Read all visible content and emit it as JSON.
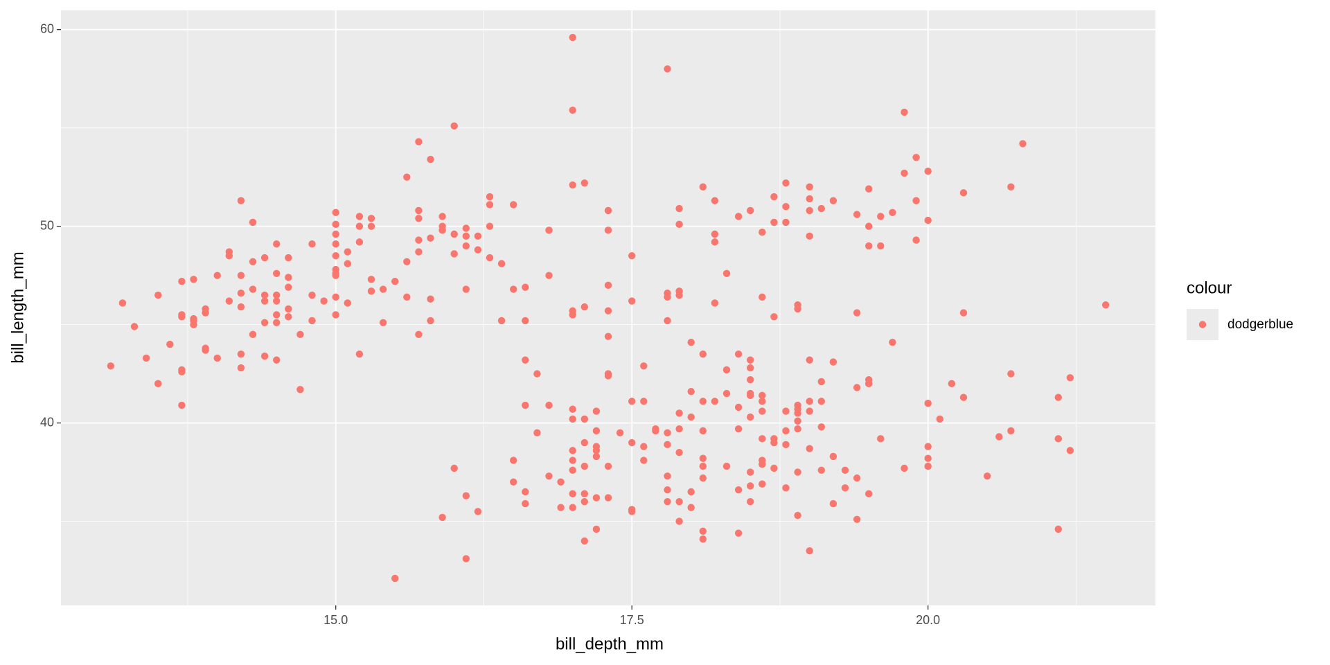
{
  "chart_data": {
    "type": "scatter",
    "x_label": "bill_depth_mm",
    "y_label": "bill_length_mm",
    "legend_title": "colour",
    "legend_position": "right",
    "series": [
      {
        "name": "dodgerblue",
        "color": "#F8766D",
        "x": [
          13.1,
          13.2,
          13.3,
          13.4,
          13.5,
          13.5,
          13.6,
          13.7,
          13.7,
          13.7,
          13.7,
          13.7,
          13.7,
          13.8,
          13.8,
          13.8,
          13.8,
          13.9,
          13.9,
          13.9,
          13.9,
          14.0,
          14.0,
          14.1,
          14.1,
          14.1,
          14.2,
          14.2,
          14.2,
          14.2,
          14.2,
          14.2,
          14.3,
          14.3,
          14.3,
          14.3,
          14.4,
          14.4,
          14.4,
          14.4,
          14.4,
          14.5,
          14.5,
          14.5,
          14.5,
          14.5,
          14.5,
          14.5,
          14.6,
          14.6,
          14.6,
          14.6,
          14.6,
          14.7,
          14.7,
          14.8,
          14.8,
          14.8,
          14.9,
          15.0,
          15.0,
          15.0,
          15.0,
          15.0,
          15.0,
          15.0,
          15.0,
          15.0,
          15.0,
          15.1,
          15.1,
          15.1,
          15.2,
          15.2,
          15.2,
          15.2,
          15.3,
          15.3,
          15.3,
          15.3,
          15.4,
          15.4,
          15.5,
          15.5,
          15.6,
          15.6,
          15.6,
          15.7,
          15.7,
          15.7,
          15.7,
          15.7,
          15.7,
          15.8,
          15.8,
          15.8,
          15.8,
          15.9,
          15.9,
          15.9,
          15.9,
          16.0,
          16.0,
          16.0,
          16.0,
          16.1,
          16.1,
          16.1,
          16.1,
          16.1,
          16.1,
          16.2,
          16.2,
          16.2,
          16.3,
          16.3,
          16.3,
          16.3,
          16.4,
          16.4,
          16.5,
          16.5,
          16.5,
          16.5,
          16.6,
          16.6,
          16.6,
          16.6,
          16.6,
          16.6,
          16.7,
          16.7,
          16.8,
          16.8,
          16.8,
          16.8,
          16.9,
          16.9,
          17.0,
          17.0,
          17.0,
          17.0,
          17.0,
          17.0,
          17.0,
          17.0,
          17.0,
          17.0,
          17.0,
          17.0,
          17.1,
          17.1,
          17.1,
          17.1,
          17.1,
          17.1,
          17.1,
          17.1,
          17.2,
          17.2,
          17.2,
          17.2,
          17.2,
          17.2,
          17.2,
          17.3,
          17.3,
          17.3,
          17.3,
          17.3,
          17.3,
          17.3,
          17.3,
          17.3,
          17.4,
          17.5,
          17.5,
          17.5,
          17.5,
          17.5,
          17.5,
          17.6,
          17.6,
          17.6,
          17.6,
          17.7,
          17.7,
          17.8,
          17.8,
          17.8,
          17.8,
          17.8,
          17.8,
          17.8,
          17.8,
          17.8,
          17.9,
          17.9,
          17.9,
          17.9,
          17.9,
          17.9,
          17.9,
          17.9,
          17.9,
          18.0,
          18.0,
          18.0,
          18.0,
          18.0,
          18.1,
          18.1,
          18.1,
          18.1,
          18.1,
          18.1,
          18.1,
          18.1,
          18.1,
          18.2,
          18.2,
          18.2,
          18.2,
          18.2,
          18.3,
          18.3,
          18.3,
          18.3,
          18.4,
          18.4,
          18.4,
          18.4,
          18.4,
          18.4,
          18.5,
          18.5,
          18.5,
          18.5,
          18.5,
          18.5,
          18.5,
          18.5,
          18.5,
          18.5,
          18.6,
          18.6,
          18.6,
          18.6,
          18.6,
          18.6,
          18.6,
          18.6,
          18.6,
          18.7,
          18.7,
          18.7,
          18.7,
          18.7,
          18.7,
          18.8,
          18.8,
          18.8,
          18.8,
          18.8,
          18.8,
          18.8,
          18.9,
          18.9,
          18.9,
          18.9,
          18.9,
          18.9,
          18.9,
          18.9,
          18.9,
          19.0,
          19.0,
          19.0,
          19.0,
          19.0,
          19.0,
          19.0,
          19.0,
          19.0,
          19.1,
          19.1,
          19.1,
          19.1,
          19.1,
          19.2,
          19.2,
          19.2,
          19.2,
          19.3,
          19.3,
          19.4,
          19.4,
          19.4,
          19.4,
          19.4,
          19.5,
          19.5,
          19.5,
          19.5,
          19.5,
          19.5,
          19.6,
          19.6,
          19.6,
          19.7,
          19.7,
          19.8,
          19.8,
          19.8,
          19.9,
          19.9,
          19.9,
          20.0,
          20.0,
          20.0,
          20.0,
          20.0,
          20.0,
          20.1,
          20.2,
          20.3,
          20.3,
          20.3,
          20.5,
          20.6,
          20.7,
          20.7,
          20.7,
          20.8,
          21.1,
          21.1,
          21.1,
          21.2,
          21.2,
          21.5
        ],
        "y": [
          42.9,
          46.1,
          44.9,
          43.3,
          46.5,
          42.0,
          44.0,
          47.2,
          45.5,
          45.4,
          42.7,
          42.6,
          40.9,
          47.3,
          45.3,
          45.2,
          45.0,
          45.8,
          45.6,
          43.8,
          43.7,
          47.5,
          43.3,
          48.7,
          48.5,
          46.2,
          51.3,
          47.5,
          46.6,
          45.9,
          43.5,
          42.8,
          50.2,
          48.2,
          46.8,
          44.5,
          48.4,
          46.5,
          46.2,
          45.1,
          43.4,
          49.1,
          47.6,
          46.5,
          46.2,
          45.5,
          45.1,
          43.2,
          48.4,
          47.4,
          46.9,
          45.8,
          45.4,
          44.5,
          41.7,
          49.1,
          46.5,
          45.2,
          46.2,
          50.7,
          50.1,
          49.6,
          49.1,
          48.5,
          47.8,
          47.6,
          47.5,
          46.4,
          45.5,
          48.7,
          48.1,
          46.1,
          50.5,
          50.0,
          49.2,
          43.5,
          50.4,
          50.0,
          47.3,
          46.7,
          46.8,
          45.1,
          47.2,
          32.1,
          52.5,
          48.2,
          46.4,
          54.3,
          50.8,
          50.4,
          49.3,
          48.7,
          44.5,
          53.4,
          49.4,
          46.3,
          45.2,
          50.5,
          50.0,
          49.8,
          35.2,
          55.1,
          49.6,
          48.6,
          37.7,
          49.9,
          49.5,
          49.0,
          46.8,
          36.3,
          33.1,
          49.5,
          48.8,
          35.5,
          51.5,
          51.1,
          50.0,
          48.4,
          48.1,
          45.2,
          51.1,
          46.8,
          38.1,
          37.0,
          46.9,
          45.2,
          43.2,
          40.9,
          36.5,
          35.9,
          42.5,
          39.5,
          49.8,
          47.5,
          40.9,
          37.3,
          37.0,
          35.7,
          59.6,
          55.9,
          52.1,
          45.7,
          45.5,
          40.7,
          40.2,
          38.6,
          38.1,
          37.6,
          36.4,
          35.7,
          52.2,
          45.9,
          40.2,
          39.0,
          37.8,
          36.4,
          36.0,
          34.0,
          40.6,
          39.6,
          38.8,
          38.6,
          38.3,
          36.2,
          34.6,
          50.8,
          49.8,
          47.0,
          45.7,
          44.4,
          42.5,
          42.4,
          37.8,
          36.2,
          39.5,
          48.5,
          46.2,
          41.1,
          39.0,
          35.6,
          35.5,
          42.9,
          41.1,
          38.8,
          38.1,
          39.6,
          39.7,
          58.0,
          46.6,
          46.4,
          45.2,
          39.5,
          38.9,
          37.3,
          36.6,
          36.0,
          50.9,
          50.1,
          46.7,
          46.5,
          40.5,
          39.7,
          38.5,
          36.0,
          35.0,
          44.1,
          41.6,
          40.3,
          36.5,
          35.7,
          52.0,
          43.5,
          41.1,
          39.6,
          38.2,
          37.8,
          37.2,
          34.5,
          34.1,
          51.3,
          49.6,
          49.2,
          46.1,
          41.1,
          47.6,
          42.7,
          41.5,
          37.8,
          50.5,
          43.5,
          40.8,
          39.7,
          36.6,
          34.4,
          50.8,
          43.2,
          42.8,
          42.2,
          41.5,
          41.4,
          40.3,
          37.5,
          36.8,
          36.0,
          49.7,
          46.4,
          41.4,
          41.1,
          40.6,
          39.2,
          38.1,
          37.9,
          36.9,
          51.5,
          50.2,
          45.4,
          39.2,
          39.0,
          37.7,
          52.2,
          51.0,
          50.2,
          40.6,
          39.6,
          38.9,
          36.7,
          46.0,
          45.8,
          40.9,
          40.7,
          40.5,
          40.1,
          39.7,
          37.5,
          35.3,
          52.0,
          51.4,
          50.8,
          49.5,
          43.2,
          41.1,
          40.6,
          38.7,
          33.5,
          50.9,
          42.1,
          41.1,
          39.8,
          37.6,
          51.3,
          43.1,
          38.3,
          35.9,
          37.6,
          36.7,
          50.6,
          45.6,
          41.8,
          37.2,
          35.1,
          51.9,
          50.0,
          49.0,
          42.2,
          42.0,
          36.4,
          50.5,
          49.0,
          39.2,
          50.7,
          44.1,
          55.8,
          52.7,
          37.7,
          53.5,
          51.3,
          49.3,
          52.8,
          50.3,
          41.0,
          38.8,
          38.2,
          37.8,
          40.2,
          42.0,
          51.7,
          45.6,
          41.3,
          37.3,
          39.3,
          52.0,
          42.5,
          39.6,
          54.2,
          41.3,
          39.2,
          34.6,
          42.3,
          38.6,
          46.0
        ]
      }
    ],
    "xlim": [
      12.68,
      21.92
    ],
    "ylim": [
      30.725,
      60.975
    ],
    "xticks": [
      {
        "value": 15,
        "label": "15.0"
      },
      {
        "value": 17.5,
        "label": "17.5"
      },
      {
        "value": 20,
        "label": "20.0"
      }
    ],
    "yticks": [
      40,
      50,
      60
    ],
    "grid": true,
    "background": "#EBEBEB"
  }
}
